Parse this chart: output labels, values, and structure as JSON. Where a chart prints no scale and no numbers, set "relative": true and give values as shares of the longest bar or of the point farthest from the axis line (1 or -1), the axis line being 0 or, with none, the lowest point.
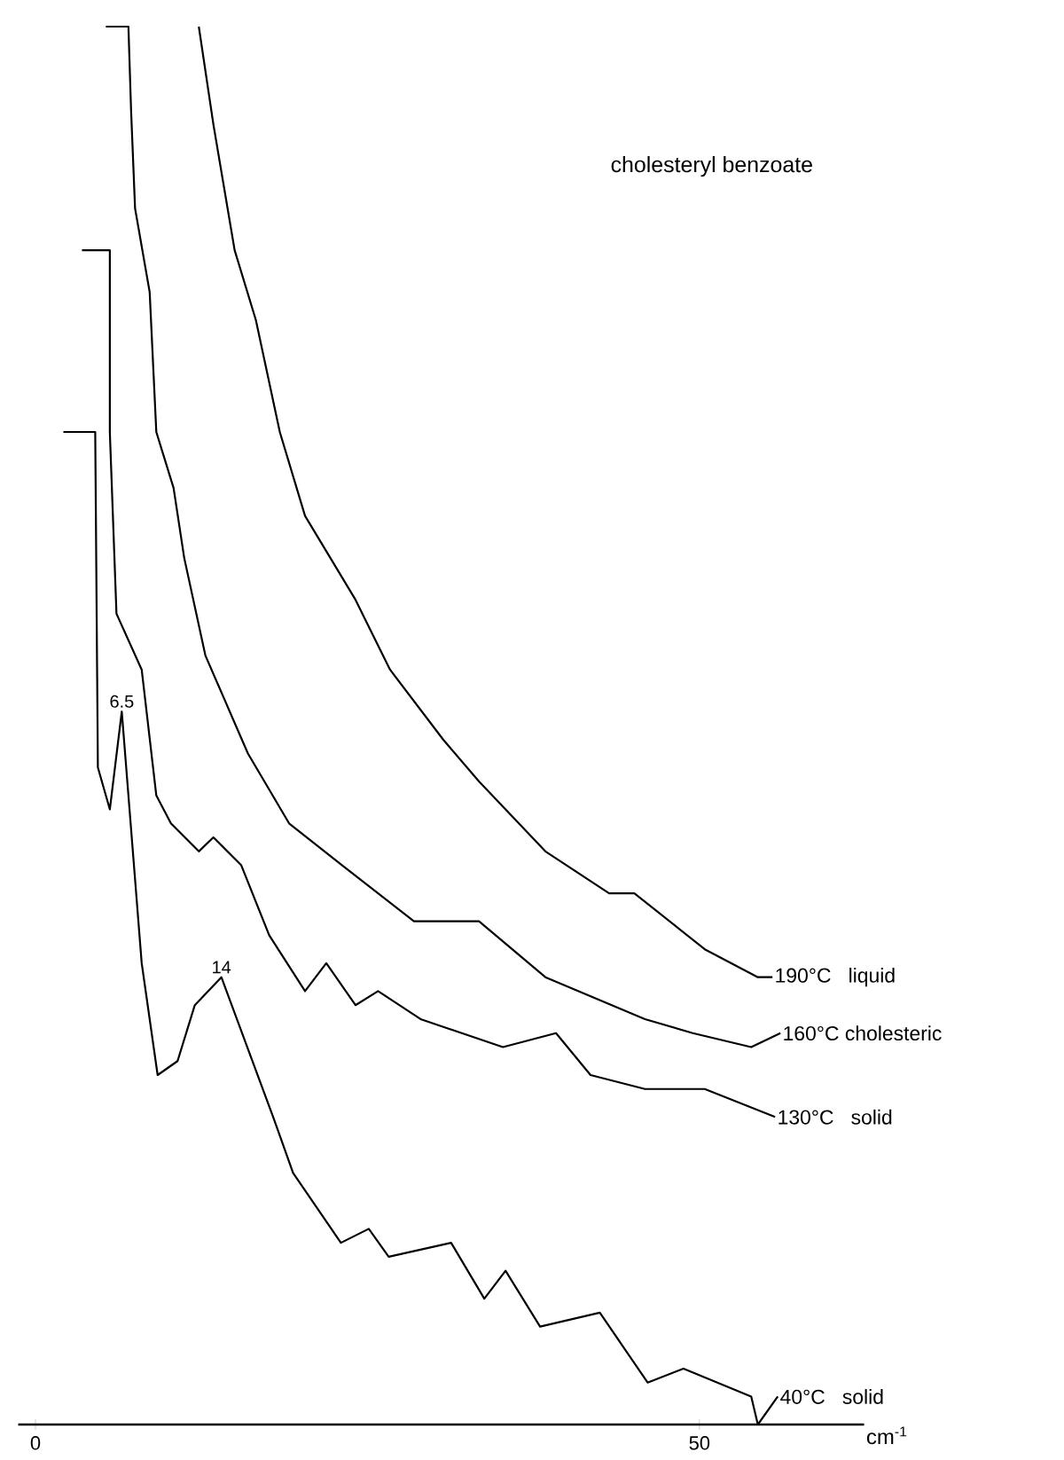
{
  "chart_data": {
    "type": "line",
    "title": "cholesteryl benzoate",
    "xlabel": "cm$^{-1}$",
    "relative": true,
    "xlim": [
      -1.3,
      62.4
    ],
    "xticks": [
      0,
      50
    ],
    "marker": "none",
    "line_style": "solid",
    "annotations": [
      {
        "text": "6.5",
        "x": 6.5,
        "y": 0.51
      },
      {
        "text": "14",
        "x": 14.0,
        "y": 0.32
      }
    ],
    "series": [
      {
        "name": "190°C   liquid",
        "color": "#000000",
        "x": [
          12.3,
          13.4,
          15.0,
          16.6,
          18.4,
          20.3,
          24.1,
          26.7,
          30.7,
          33.4,
          38.4,
          43.2,
          45.1,
          50.4,
          54.4,
          55.5
        ],
        "values": [
          1.0,
          0.93,
          0.84,
          0.79,
          0.71,
          0.65,
          0.59,
          0.54,
          0.49,
          0.46,
          0.41,
          0.38,
          0.38,
          0.34,
          0.32,
          0.32
        ]
      },
      {
        "name": "160°C cholesteric",
        "color": "#000000",
        "x": [
          5.3,
          7.0,
          7.2,
          7.5,
          8.6,
          9.1,
          10.4,
          11.2,
          12.8,
          16.0,
          19.1,
          23.1,
          28.5,
          33.4,
          38.4,
          45.9,
          49.5,
          53.9,
          56.1
        ],
        "values": [
          1.0,
          1.0,
          0.94,
          0.87,
          0.81,
          0.71,
          0.67,
          0.62,
          0.55,
          0.48,
          0.43,
          0.4,
          0.36,
          0.36,
          0.32,
          0.29,
          0.28,
          0.27,
          0.28
        ]
      },
      {
        "name": "130°C   solid",
        "color": "#000000",
        "x": [
          3.5,
          5.6,
          5.6,
          6.1,
          8.0,
          9.1,
          10.2,
          12.3,
          13.4,
          15.5,
          17.6,
          20.3,
          21.9,
          24.1,
          25.8,
          29.0,
          35.2,
          39.2,
          41.8,
          45.9,
          50.4,
          55.7
        ],
        "values": [
          0.84,
          0.84,
          0.71,
          0.58,
          0.54,
          0.45,
          0.43,
          0.41,
          0.42,
          0.4,
          0.35,
          0.31,
          0.33,
          0.3,
          0.31,
          0.29,
          0.27,
          0.28,
          0.25,
          0.24,
          0.24,
          0.22
        ]
      },
      {
        "name": "40°C   solid",
        "color": "#000000",
        "x": [
          2.1,
          4.5,
          4.7,
          5.6,
          6.5,
          8.0,
          9.2,
          10.7,
          12.0,
          14.0,
          17.9,
          19.4,
          23.0,
          25.1,
          26.6,
          31.3,
          33.8,
          35.4,
          38.0,
          42.5,
          46.1,
          48.8,
          53.9,
          54.4,
          55.9
        ],
        "values": [
          0.71,
          0.71,
          0.47,
          0.44,
          0.51,
          0.33,
          0.25,
          0.26,
          0.3,
          0.32,
          0.22,
          0.18,
          0.13,
          0.14,
          0.12,
          0.13,
          0.09,
          0.11,
          0.07,
          0.08,
          0.03,
          0.04,
          0.02,
          0.0,
          0.02
        ]
      }
    ]
  }
}
